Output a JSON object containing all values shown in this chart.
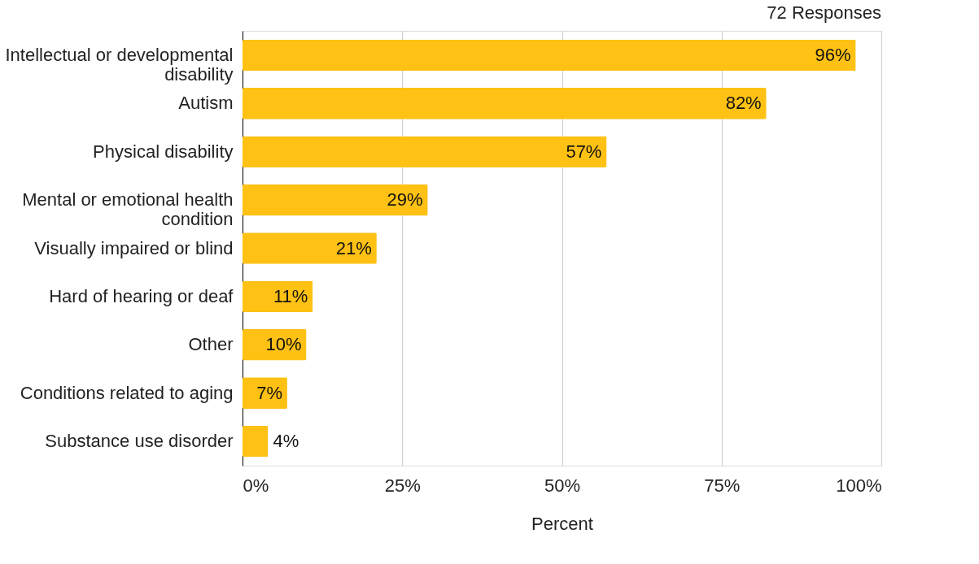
{
  "chart_data": {
    "type": "bar",
    "orientation": "horizontal",
    "categories": [
      "Intellectual or developmental disability",
      "Autism",
      "Physical disability",
      "Mental or emotional health condition",
      "Visually impaired or blind",
      "Hard of hearing or deaf",
      "Other",
      "Conditions related to aging",
      "Substance use disorder"
    ],
    "values": [
      96,
      82,
      57,
      29,
      21,
      11,
      10,
      7,
      4
    ],
    "value_labels": [
      "96%",
      "82%",
      "57%",
      "29%",
      "21%",
      "11%",
      "10%",
      "7%",
      "4%"
    ],
    "color": "#ffc114",
    "xlim": [
      0,
      100
    ],
    "xticks": [
      {
        "value": 0,
        "label": "0%"
      },
      {
        "value": 25,
        "label": "25%"
      },
      {
        "value": 50,
        "label": "50%"
      },
      {
        "value": 75,
        "label": "75%"
      },
      {
        "value": 100,
        "label": "100%"
      }
    ],
    "xlabel": "Percent",
    "annotations": [
      "72 Responses"
    ],
    "grid": "x"
  }
}
